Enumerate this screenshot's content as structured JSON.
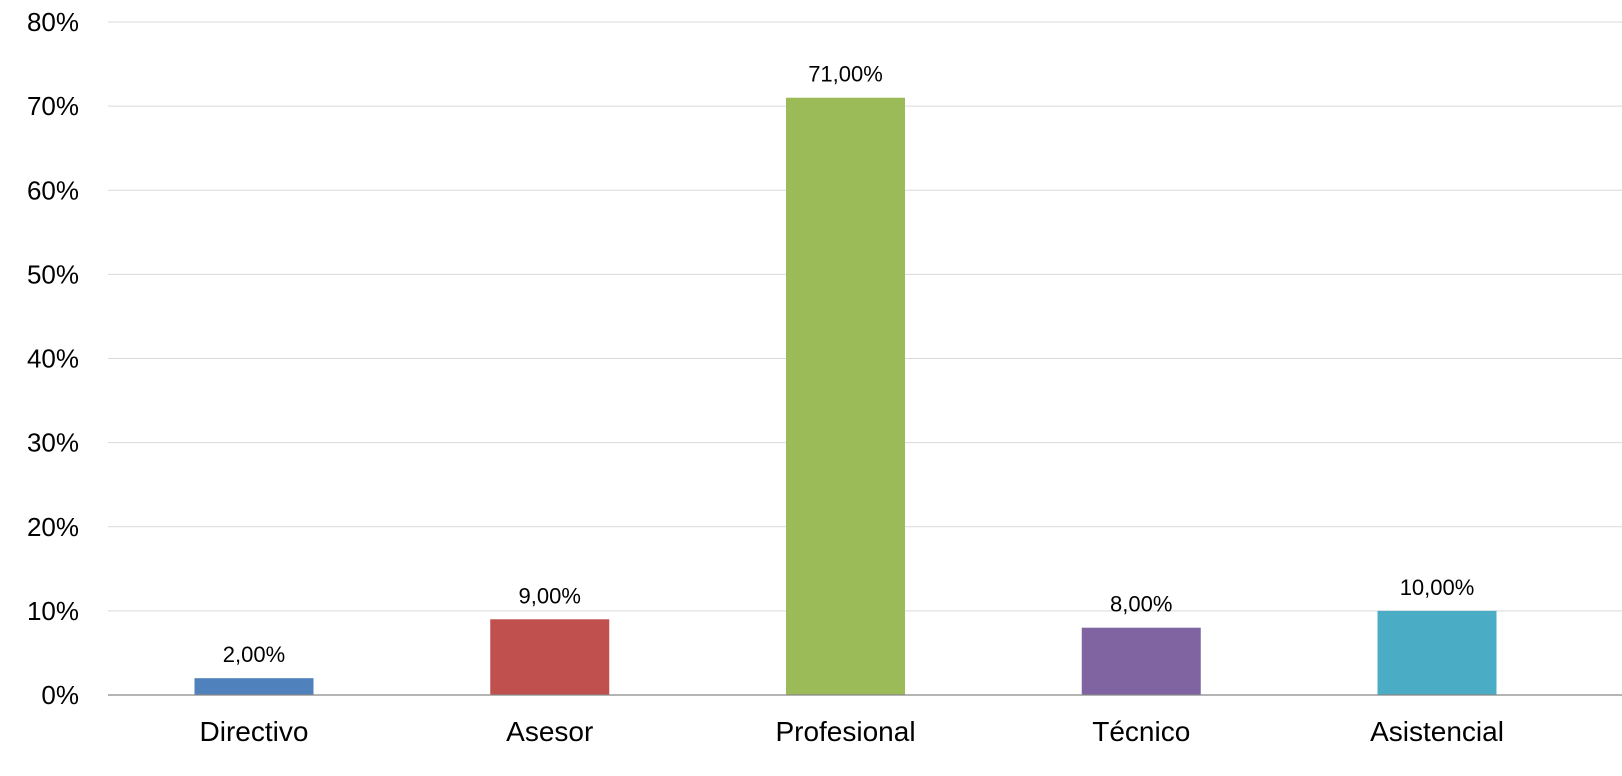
{
  "chart_data": {
    "type": "bar",
    "categories": [
      "Directivo",
      "Asesor",
      "Profesional",
      "Técnico",
      "Asistencial"
    ],
    "values": [
      2,
      9,
      71,
      8,
      10
    ],
    "data_labels": [
      "2,00%",
      "9,00%",
      "71,00%",
      "8,00%",
      "10,00%"
    ],
    "colors": [
      "#4f81bd",
      "#c0504d",
      "#9bbb59",
      "#8064a2",
      "#4bacc6"
    ],
    "yticks": [
      {
        "value": 0,
        "label": "0%"
      },
      {
        "value": 10,
        "label": "10%"
      },
      {
        "value": 20,
        "label": "20%"
      },
      {
        "value": 30,
        "label": "30%"
      },
      {
        "value": 40,
        "label": "40%"
      },
      {
        "value": 50,
        "label": "50%"
      },
      {
        "value": 60,
        "label": "60%"
      },
      {
        "value": 70,
        "label": "70%"
      },
      {
        "value": 80,
        "label": "80%"
      }
    ],
    "ylim": [
      0,
      80
    ],
    "grid": true,
    "title": "",
    "xlabel": "",
    "ylabel": ""
  }
}
